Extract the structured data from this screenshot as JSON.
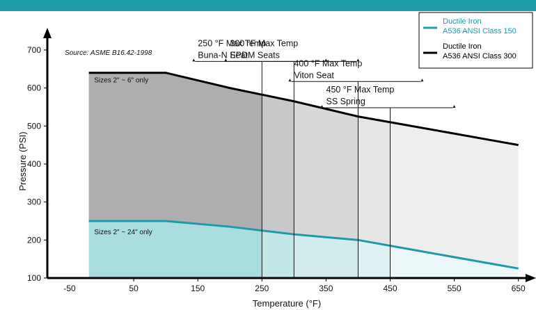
{
  "colors": {
    "topbar": "#1f9aa6",
    "class150": "#1f9aa6",
    "class300": "#000000"
  },
  "chart_data": {
    "type": "area",
    "xlabel": "Temperature (°F)",
    "ylabel": "Pressure (PSI)",
    "xlim": [
      -50,
      670
    ],
    "ylim": [
      100,
      720
    ],
    "xticks": [
      -50,
      50,
      150,
      250,
      350,
      450,
      550,
      650
    ],
    "yticks": [
      100,
      200,
      300,
      400,
      500,
      600,
      700
    ],
    "grid": false,
    "legend_position": "top-right",
    "source": "Source: ASME B16.42-1998",
    "series": [
      {
        "name_line1": "Ductile Iron",
        "name_line2": "A536 ANSI Class 150",
        "color": "#1f9aa6",
        "x": [
          -20,
          100,
          200,
          300,
          400,
          500,
          600,
          650
        ],
        "y": [
          250,
          250,
          235,
          215,
          200,
          170,
          140,
          125
        ]
      },
      {
        "name_line1": "Ductile Iron",
        "name_line2": "A536 ANSI Class 300",
        "color": "#000000",
        "x": [
          -20,
          100,
          200,
          300,
          400,
          500,
          600,
          650
        ],
        "y": [
          640,
          640,
          600,
          565,
          525,
          495,
          465,
          450
        ]
      }
    ],
    "region_labels": [
      {
        "text": "Sizes 2\" ~ 6\" only",
        "x": -15,
        "y": 615
      },
      {
        "text": "Sizes 2\" ~ 24\" only",
        "x": -15,
        "y": 215
      }
    ],
    "temp_limits": [
      {
        "x": 250,
        "line1": "250 °F Max Temp",
        "line2": "Buna-N Seat",
        "top_y": 670
      },
      {
        "x": 300,
        "line1": "300 °F Max Temp",
        "line2": "EPDM Seats",
        "top_y": 670
      },
      {
        "x": 400,
        "line1": "400 °F Max Temp",
        "line2": "Viton Seat",
        "top_y": 617
      },
      {
        "x": 450,
        "line1": "450 °F Max Temp",
        "line2": "SS Spring",
        "top_y": 548
      }
    ]
  }
}
